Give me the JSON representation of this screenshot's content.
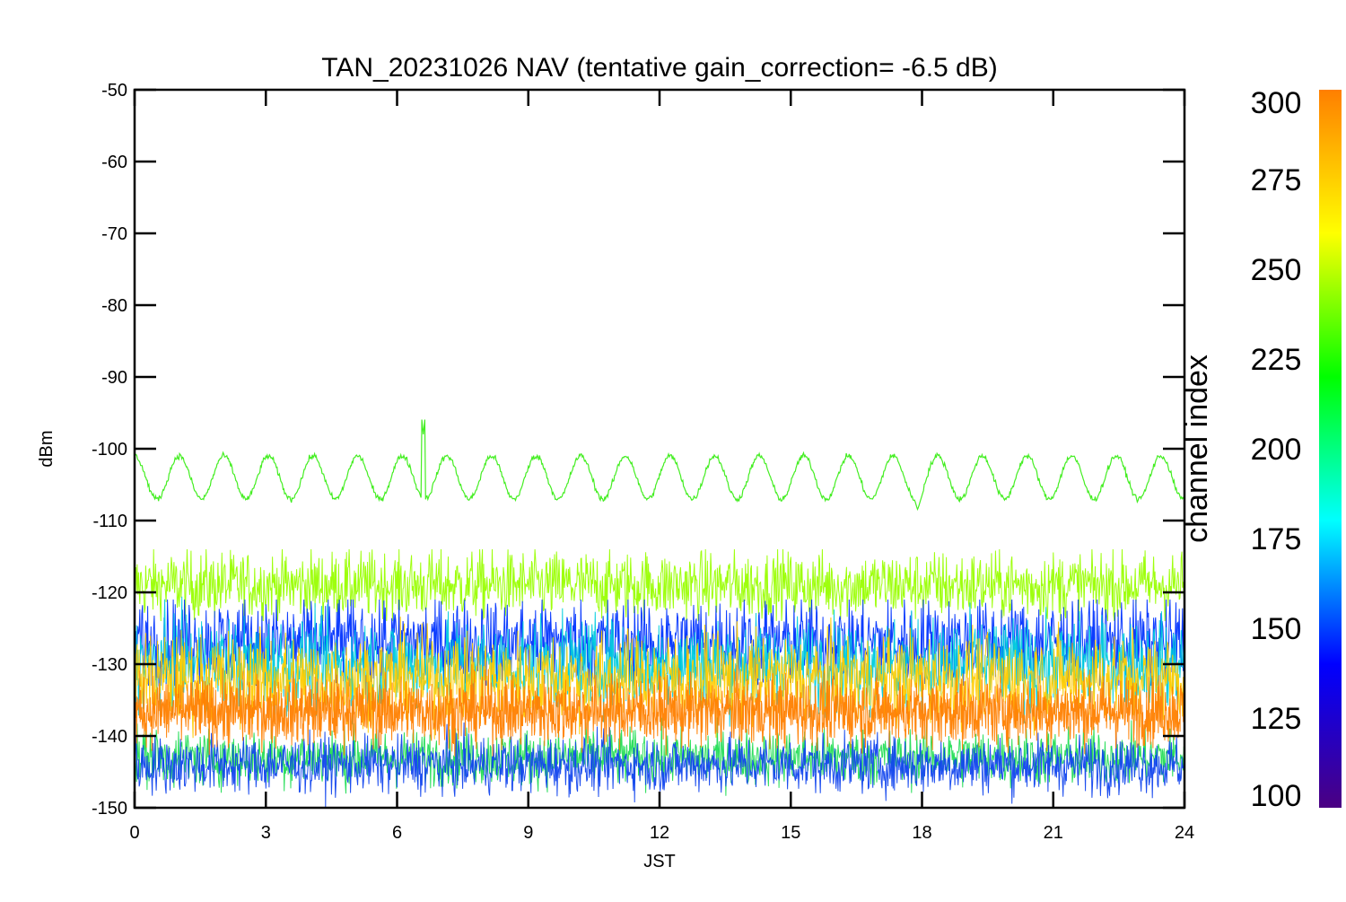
{
  "chart_data": {
    "type": "line",
    "title": "TAN_20231026 NAV (tentative gain_correction= -6.5 dB)",
    "xlabel": "JST",
    "ylabel": "dBm",
    "xlim": [
      0,
      24
    ],
    "ylim": [
      -150,
      -50
    ],
    "x_ticks": [
      "0",
      "3",
      "6",
      "9",
      "12",
      "15",
      "18",
      "21",
      "24"
    ],
    "y_ticks": [
      "-50",
      "-60",
      "-70",
      "-80",
      "-90",
      "-100",
      "-110",
      "-120",
      "-130",
      "-140",
      "-150"
    ],
    "grid": false,
    "colorbar": {
      "label": "channel index",
      "range": [
        100,
        300
      ],
      "ticks": [
        "100",
        "125",
        "150",
        "175",
        "200",
        "225",
        "250",
        "275",
        "300"
      ],
      "colors": [
        "#4b0082",
        "#0000ff",
        "#00ffff",
        "#00ff00",
        "#ffff00",
        "#ff7f00"
      ]
    },
    "series": [
      {
        "description_color": "#44ee22",
        "channel_index": 240,
        "shape": "sinusoid",
        "mean_dBm": -104,
        "amplitude_dB": 3,
        "period_hours": 1.02,
        "noise_dB": 0.4,
        "features": [
          {
            "x": 6.6,
            "peak_dBm": -98
          },
          {
            "x": 17.9,
            "dip_dBm": -108.5
          }
        ]
      },
      {
        "description_color": "#99ff00",
        "channel_index": 255,
        "shape": "noise-band",
        "mean_dBm": -119,
        "spread_dB": 3,
        "max_dBm": -114,
        "min_dBm": -124
      },
      {
        "description_color": "#0033ff",
        "channel_index": 150,
        "shape": "noise-band",
        "mean_dBm": -127,
        "spread_dB": 4,
        "max_dBm": -121,
        "min_dBm": -133
      },
      {
        "description_color": "#00ccdd",
        "channel_index": 180,
        "shape": "noise-band",
        "mean_dBm": -130,
        "spread_dB": 4
      },
      {
        "description_color": "#ffcc00",
        "channel_index": 275,
        "shape": "noise-band",
        "mean_dBm": -132,
        "spread_dB": 4
      },
      {
        "description_color": "#ff8000",
        "channel_index": 300,
        "shape": "noise-band",
        "mean_dBm": -136.5,
        "spread_dB": 3,
        "max_dBm": -128,
        "min_dBm": -145
      },
      {
        "description_color": "#22dd55",
        "channel_index": 230,
        "shape": "noise-band",
        "mean_dBm": -143,
        "spread_dB": 2.5,
        "min_dBm": -150
      },
      {
        "description_color": "#1144ee",
        "channel_index": 145,
        "shape": "noise-band",
        "mean_dBm": -144,
        "spread_dB": 2.5
      }
    ]
  }
}
